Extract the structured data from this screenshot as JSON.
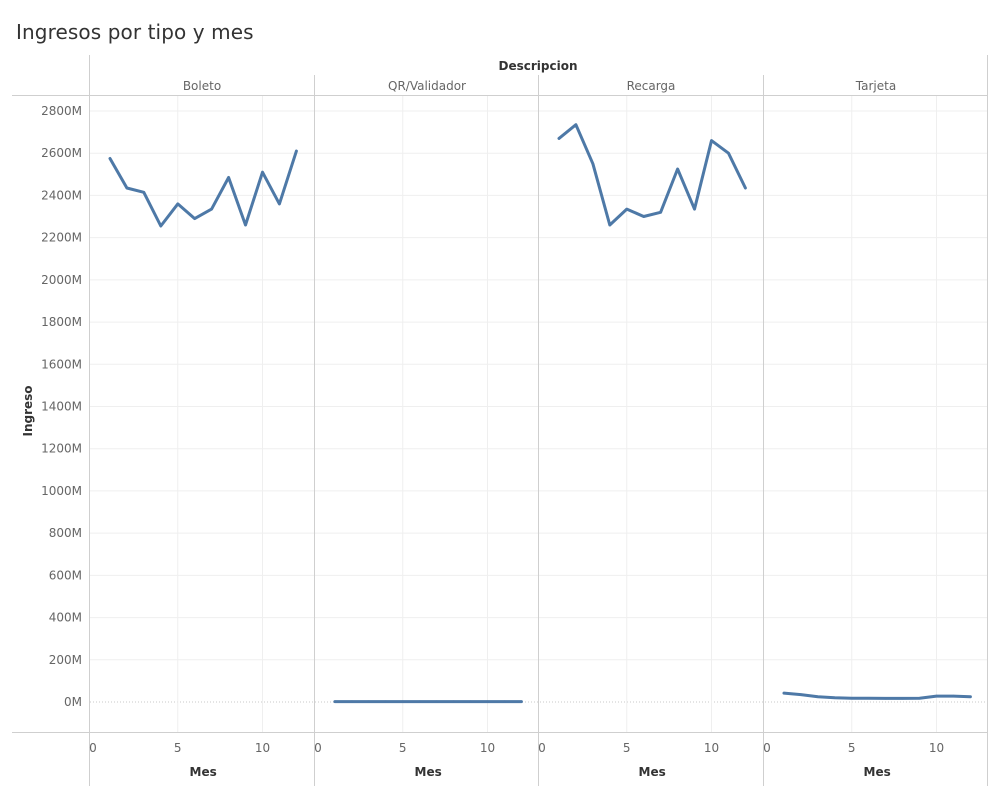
{
  "title": "Ingresos por tipo y mes",
  "colors": {
    "line": "#4e79a7",
    "grid": "#efefef",
    "divider": "#cfcfcf",
    "zero": "#c8c8c8"
  },
  "chart_data": {
    "type": "line",
    "title": "Ingresos por tipo y mes",
    "facet_label": "Descripcion",
    "xlabel": "Mes",
    "ylabel": "Ingreso",
    "ylim": [
      0,
      2800
    ],
    "y_unit": "M",
    "y_ticks": [
      "2800M",
      "2600M",
      "2400M",
      "2200M",
      "2000M",
      "1800M",
      "1600M",
      "1400M",
      "1200M",
      "1000M",
      "800M",
      "600M",
      "400M",
      "200M",
      "0M"
    ],
    "x_ticks": [
      "0",
      "5",
      "10"
    ],
    "x": [
      1,
      2,
      3,
      4,
      5,
      6,
      7,
      8,
      9,
      10,
      11,
      12
    ],
    "grid": true,
    "series": [
      {
        "name": "Boleto",
        "values": [
          2575,
          2435,
          2415,
          2255,
          2360,
          2290,
          2335,
          2485,
          2260,
          2510,
          2360,
          2610
        ]
      },
      {
        "name": "QR/Validador",
        "values": [
          2,
          2,
          2,
          2,
          2,
          2,
          2,
          2,
          2,
          2,
          2,
          2
        ]
      },
      {
        "name": "Recarga",
        "values": [
          2670,
          2735,
          2550,
          2260,
          2335,
          2300,
          2320,
          2525,
          2335,
          2660,
          2600,
          2435
        ]
      },
      {
        "name": "Tarjeta",
        "values": [
          42,
          35,
          25,
          20,
          18,
          18,
          17,
          17,
          18,
          28,
          28,
          25
        ]
      }
    ]
  }
}
